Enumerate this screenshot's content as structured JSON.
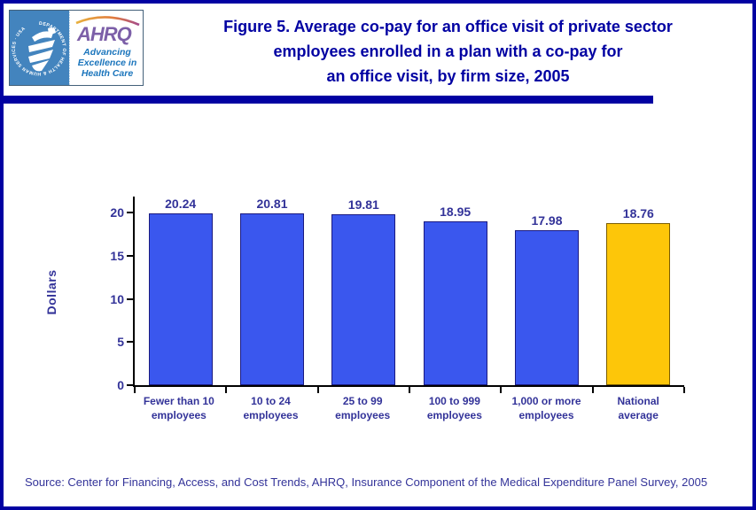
{
  "header": {
    "title_lines": [
      "Figure 5. Average co-pay for an office visit of private sector",
      "employees enrolled in a plan with a co-pay for",
      "an office visit, by firm size, 2005"
    ],
    "logo": {
      "hhs_ring_text": "DEPARTMENT OF HEALTH & HUMAN SERVICES · USA",
      "ahrq_acronym": "AHRQ",
      "tagline_lines": [
        "Advancing",
        "Excellence in",
        "Health Care"
      ]
    }
  },
  "chart_data": {
    "type": "bar",
    "title": "Average co-pay for an office visit of private sector employees enrolled in a plan with a co-pay for an office visit, by firm size, 2005",
    "categories": [
      "Fewer than 10 employees",
      "10 to 24 employees",
      "25 to 99 employees",
      "100 to 999 employees",
      "1,000 or more employees",
      "National average"
    ],
    "category_label_lines": [
      [
        "Fewer than 10",
        "employees"
      ],
      [
        "10 to 24",
        "employees"
      ],
      [
        "25 to 99",
        "employees"
      ],
      [
        "100 to 999",
        "employees"
      ],
      [
        "1,000 or more",
        "employees"
      ],
      [
        "National",
        "average"
      ]
    ],
    "values": [
      20.24,
      20.81,
      19.81,
      18.95,
      17.98,
      18.76
    ],
    "value_labels": [
      "20.24",
      "20.81",
      "19.81",
      "18.95",
      "17.98",
      "18.76"
    ],
    "xlabel": "",
    "ylabel": "Dollars",
    "ylim": [
      0,
      22
    ],
    "yticks": [
      0,
      5,
      10,
      15,
      20
    ],
    "grid": false,
    "legend": "none",
    "bar_colors": [
      "#3a57ee",
      "#3a57ee",
      "#3a57ee",
      "#3a57ee",
      "#3a57ee",
      "#fdc609"
    ],
    "bar_border_colors": [
      "#1a1a80",
      "#1a1a80",
      "#1a1a80",
      "#1a1a80",
      "#1a1a80",
      "#7a5c00"
    ]
  },
  "footer": {
    "source": "Source: Center for Financing, Access, and Cost Trends, AHRQ, Insurance Component of the Medical Expenditure Panel Survey, 2005"
  },
  "colors": {
    "frame_navy": "#0101a2",
    "title_navy": "#0000a2",
    "label_navy": "#333399",
    "bar_blue": "#3a57ee",
    "bar_gold": "#fdc609",
    "hhs_panel_blue": "#4384be",
    "ahrq_purple": "#7c5fa8",
    "tagline_blue": "#1b75bc",
    "arc_orange": "#e09a3e"
  }
}
